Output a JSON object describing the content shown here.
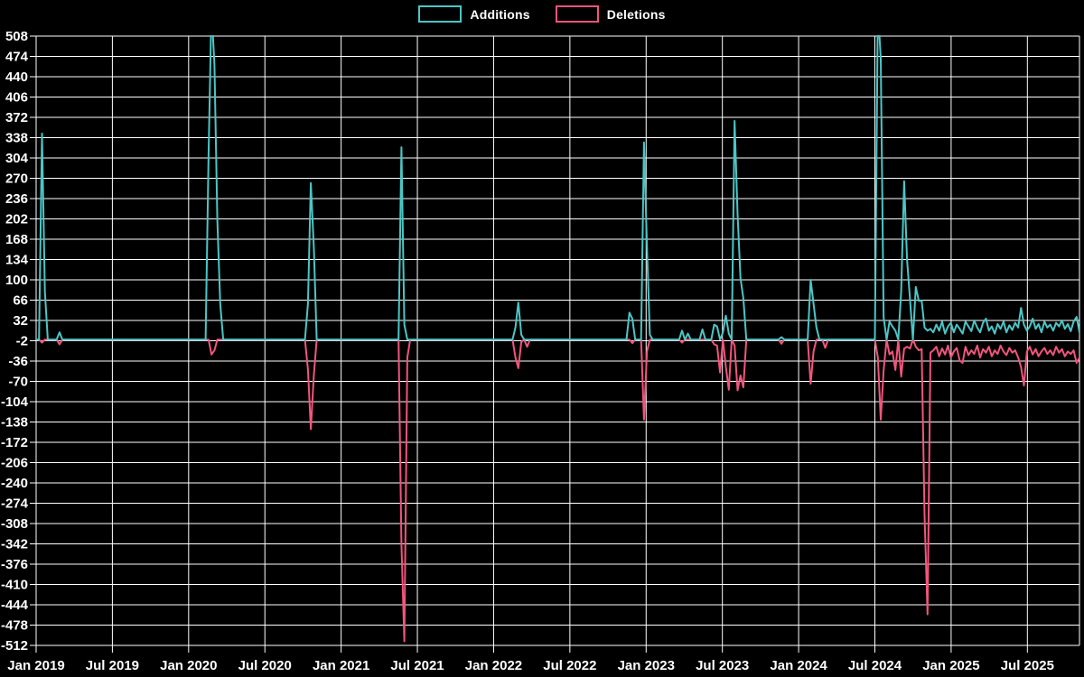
{
  "page": {
    "background": "#000000"
  },
  "legend": {
    "items": [
      {
        "label": "Additions",
        "color": "#4BC6C6"
      },
      {
        "label": "Deletions",
        "color": "#F2557C"
      }
    ]
  },
  "chart_data": {
    "type": "line",
    "title": "",
    "legend_position": "top-center",
    "background": "#000000",
    "grid_color": "#ffffff",
    "text_color": "#ffffff",
    "grid": true,
    "x_axis": {
      "unit": "months since Jan 2019",
      "months_total": 82.1,
      "tick_months": [
        0,
        6,
        12,
        18,
        24,
        30,
        36,
        42,
        48,
        54,
        60,
        66,
        72,
        78
      ],
      "tick_labels": [
        "Jan 2019",
        "Jul 2019",
        "Jan 2020",
        "Jul 2020",
        "Jan 2021",
        "Jul 2021",
        "Jan 2022",
        "Jul 2022",
        "Jan 2023",
        "Jul 2023",
        "Jan 2024",
        "Jul 2024",
        "Jan 2025",
        "Jul 2025"
      ]
    },
    "y_axis": {
      "max": 508,
      "min": -512,
      "tick_step": 34,
      "tick_labels": [
        508,
        474,
        440,
        406,
        372,
        338,
        304,
        270,
        236,
        202,
        168,
        134,
        100,
        66,
        32,
        -2,
        -36,
        -70,
        -104,
        -138,
        -172,
        -206,
        -240,
        -274,
        -308,
        -342,
        -376,
        -410,
        -444,
        -478,
        -512
      ]
    },
    "weeks_total": 357,
    "series": [
      {
        "name": "Deletions",
        "color": "#F2557C",
        "default": 0,
        "points": [
          [
            2,
            -5
          ],
          [
            8,
            -8
          ],
          [
            60,
            -25
          ],
          [
            61,
            -18
          ],
          [
            93,
            -50
          ],
          [
            94,
            -150
          ],
          [
            95,
            -60
          ],
          [
            125,
            -343
          ],
          [
            126,
            -505
          ],
          [
            127,
            -30
          ],
          [
            164,
            -30
          ],
          [
            165,
            -48
          ],
          [
            166,
            -4
          ],
          [
            168,
            -12
          ],
          [
            204,
            -6
          ],
          [
            208,
            -134
          ],
          [
            209,
            -20
          ],
          [
            221,
            -5
          ],
          [
            232,
            -8
          ],
          [
            233,
            -10
          ],
          [
            234,
            -55
          ],
          [
            236,
            -45
          ],
          [
            237,
            -84
          ],
          [
            239,
            -10
          ],
          [
            240,
            -85
          ],
          [
            241,
            -60
          ],
          [
            242,
            -80
          ],
          [
            255,
            -7
          ],
          [
            265,
            -74
          ],
          [
            266,
            -20
          ],
          [
            270,
            -14
          ],
          [
            288,
            -30
          ],
          [
            289,
            -134
          ],
          [
            290,
            -51
          ],
          [
            292,
            -25
          ],
          [
            293,
            -20
          ],
          [
            294,
            -51
          ],
          [
            296,
            -62
          ],
          [
            297,
            -15
          ],
          [
            298,
            -12
          ],
          [
            299,
            -15
          ],
          [
            301,
            -12
          ],
          [
            302,
            -18
          ],
          [
            303,
            -16
          ],
          [
            304,
            -295
          ],
          [
            305,
            -460
          ],
          [
            306,
            -22
          ],
          [
            307,
            -18
          ],
          [
            308,
            -12
          ],
          [
            309,
            -28
          ],
          [
            310,
            -15
          ],
          [
            311,
            -25
          ],
          [
            312,
            -10
          ],
          [
            313,
            -30
          ],
          [
            314,
            -20
          ],
          [
            315,
            -14
          ],
          [
            316,
            -35
          ],
          [
            317,
            -39
          ],
          [
            318,
            -12
          ],
          [
            319,
            -26
          ],
          [
            320,
            -18
          ],
          [
            321,
            -24
          ],
          [
            322,
            -10
          ],
          [
            323,
            -30
          ],
          [
            324,
            -16
          ],
          [
            325,
            -22
          ],
          [
            326,
            -12
          ],
          [
            327,
            -28
          ],
          [
            328,
            -18
          ],
          [
            329,
            -24
          ],
          [
            330,
            -10
          ],
          [
            331,
            -20
          ],
          [
            332,
            -26
          ],
          [
            333,
            -14
          ],
          [
            334,
            -22
          ],
          [
            335,
            -18
          ],
          [
            336,
            -30
          ],
          [
            337,
            -46
          ],
          [
            338,
            -77
          ],
          [
            339,
            -20
          ],
          [
            340,
            -12
          ],
          [
            341,
            -25
          ],
          [
            342,
            -16
          ],
          [
            343,
            -28
          ],
          [
            344,
            -20
          ],
          [
            345,
            -14
          ],
          [
            346,
            -24
          ],
          [
            347,
            -18
          ],
          [
            348,
            -26
          ],
          [
            349,
            -12
          ],
          [
            350,
            -22
          ],
          [
            351,
            -16
          ],
          [
            352,
            -28
          ],
          [
            353,
            -20
          ],
          [
            354,
            -24
          ],
          [
            355,
            -18
          ],
          [
            356,
            -39
          ],
          [
            357,
            -30
          ]
        ]
      },
      {
        "name": "Additions",
        "color": "#4BC6C6",
        "default": 0,
        "points": [
          [
            2,
            345
          ],
          [
            3,
            80
          ],
          [
            8,
            12
          ],
          [
            59,
            310
          ],
          [
            60,
            555
          ],
          [
            61,
            460
          ],
          [
            62,
            200
          ],
          [
            63,
            60
          ],
          [
            93,
            60
          ],
          [
            94,
            262
          ],
          [
            95,
            155
          ],
          [
            125,
            322
          ],
          [
            126,
            25
          ],
          [
            164,
            20
          ],
          [
            165,
            62
          ],
          [
            166,
            8
          ],
          [
            203,
            45
          ],
          [
            204,
            35
          ],
          [
            208,
            330
          ],
          [
            209,
            155
          ],
          [
            210,
            8
          ],
          [
            221,
            15
          ],
          [
            223,
            10
          ],
          [
            228,
            17
          ],
          [
            232,
            25
          ],
          [
            233,
            22
          ],
          [
            235,
            12
          ],
          [
            236,
            40
          ],
          [
            237,
            10
          ],
          [
            239,
            366
          ],
          [
            240,
            210
          ],
          [
            241,
            103
          ],
          [
            242,
            69
          ],
          [
            255,
            4
          ],
          [
            265,
            100
          ],
          [
            266,
            60
          ],
          [
            267,
            20
          ],
          [
            288,
            555
          ],
          [
            289,
            470
          ],
          [
            290,
            37
          ],
          [
            292,
            30
          ],
          [
            293,
            22
          ],
          [
            294,
            15
          ],
          [
            296,
            80
          ],
          [
            297,
            265
          ],
          [
            298,
            134
          ],
          [
            299,
            67
          ],
          [
            301,
            88
          ],
          [
            302,
            65
          ],
          [
            303,
            65
          ],
          [
            304,
            20
          ],
          [
            305,
            15
          ],
          [
            306,
            18
          ],
          [
            307,
            12
          ],
          [
            308,
            25
          ],
          [
            309,
            15
          ],
          [
            310,
            30
          ],
          [
            311,
            10
          ],
          [
            312,
            22
          ],
          [
            313,
            28
          ],
          [
            314,
            12
          ],
          [
            315,
            25
          ],
          [
            316,
            18
          ],
          [
            317,
            10
          ],
          [
            318,
            30
          ],
          [
            319,
            22
          ],
          [
            320,
            14
          ],
          [
            321,
            32
          ],
          [
            322,
            20
          ],
          [
            323,
            12
          ],
          [
            324,
            28
          ],
          [
            325,
            35
          ],
          [
            326,
            15
          ],
          [
            327,
            22
          ],
          [
            328,
            10
          ],
          [
            329,
            26
          ],
          [
            330,
            18
          ],
          [
            331,
            30
          ],
          [
            332,
            12
          ],
          [
            333,
            24
          ],
          [
            334,
            16
          ],
          [
            335,
            28
          ],
          [
            336,
            20
          ],
          [
            337,
            53
          ],
          [
            338,
            25
          ],
          [
            339,
            15
          ],
          [
            340,
            22
          ],
          [
            341,
            35
          ],
          [
            342,
            18
          ],
          [
            343,
            26
          ],
          [
            344,
            12
          ],
          [
            345,
            30
          ],
          [
            346,
            20
          ],
          [
            347,
            25
          ],
          [
            348,
            15
          ],
          [
            349,
            28
          ],
          [
            350,
            22
          ],
          [
            351,
            32
          ],
          [
            352,
            18
          ],
          [
            353,
            26
          ],
          [
            354,
            14
          ],
          [
            355,
            30
          ],
          [
            356,
            38
          ],
          [
            357,
            12
          ]
        ]
      }
    ]
  }
}
